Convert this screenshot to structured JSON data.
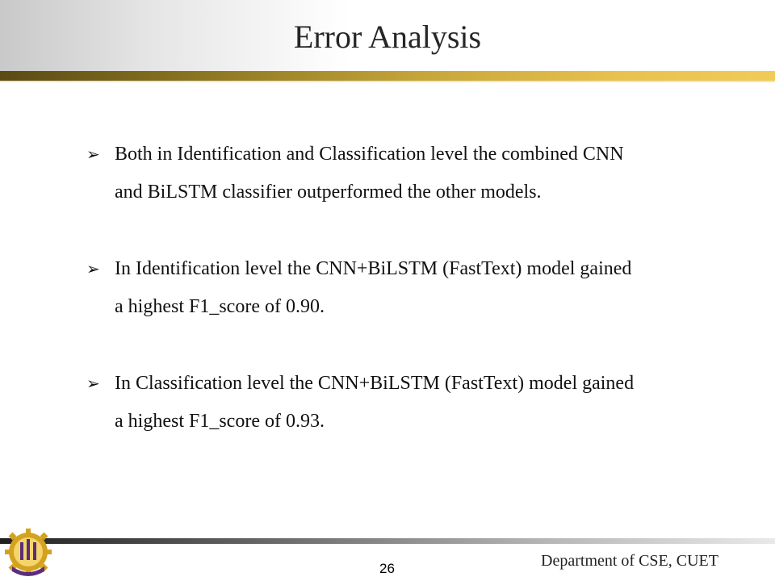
{
  "slide": {
    "title": "Error Analysis",
    "page_number": "26",
    "footer_text": "Department of CSE, CUET"
  },
  "bullets": [
    {
      "icon": "arrow-bullet-icon",
      "line1": "Both in Identification and Classification level the combined CNN",
      "line2": "and BiLSTM classifier outperformed the other models."
    },
    {
      "icon": "arrow-bullet-icon",
      "line1": "In Identification level the CNN+BiLSTM (FastText) model gained",
      "line2": "a highest F1_score of  0.90."
    },
    {
      "icon": "arrow-bullet-icon",
      "line1": "In Classification level the CNN+BiLSTM (FastText) model gained",
      "line2": "a highest F1_score of  0.93."
    }
  ],
  "logo": {
    "icon": "university-crest-icon",
    "colors": {
      "gold": "#d4a21f",
      "purple": "#5b2d7a"
    }
  },
  "colors": {
    "header_rule": "#c7a63a",
    "footer_rule": "#5e5e5e"
  }
}
